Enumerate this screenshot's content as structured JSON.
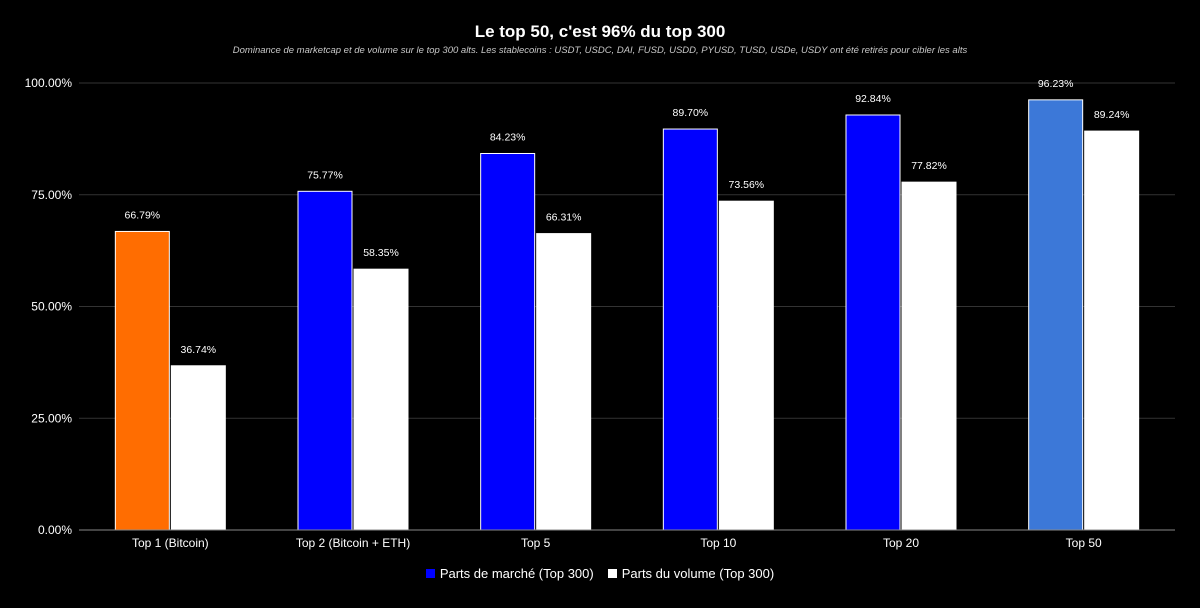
{
  "chart_data": {
    "type": "bar",
    "title": "Le top 50, c'est 96% du top 300",
    "subtitle": "Dominance de marketcap et de volume sur le top 300 alts. Les stablecoins : USDT, USDC, DAI, FUSD, USDD, PYUSD, TUSD, USDe, USDY ont été retirés pour cibler les alts",
    "categories": [
      "Top 1 (Bitcoin)",
      "Top 2 (Bitcoin + ETH)",
      "Top 5",
      "Top 10",
      "Top 20",
      "Top 50"
    ],
    "series": [
      {
        "name": "Parts de marché (Top 300)",
        "values": [
          66.79,
          75.77,
          84.23,
          89.7,
          92.84,
          96.23
        ],
        "labels": [
          "66.79%",
          "75.77%",
          "84.23%",
          "89.70%",
          "92.84%",
          "96.23%"
        ],
        "color": "#0000ff",
        "point_colors": [
          "#ff6d01",
          "#0000ff",
          "#0000ff",
          "#0000ff",
          "#0000ff",
          "#3c78d8"
        ]
      },
      {
        "name": "Parts du volume (Top 300)",
        "values": [
          36.74,
          58.35,
          66.31,
          73.56,
          77.82,
          89.24
        ],
        "labels": [
          "36.74%",
          "58.35%",
          "66.31%",
          "73.56%",
          "77.82%",
          "89.24%"
        ],
        "color": "#ffffff"
      }
    ],
    "ylim": [
      0,
      100
    ],
    "yticks": [
      0,
      25,
      50,
      75,
      100
    ],
    "ytick_labels": [
      "0.00%",
      "25.00%",
      "50.00%",
      "75.00%",
      "100.00%"
    ],
    "grid": true,
    "legend_position": "bottom",
    "background": "#000000"
  }
}
